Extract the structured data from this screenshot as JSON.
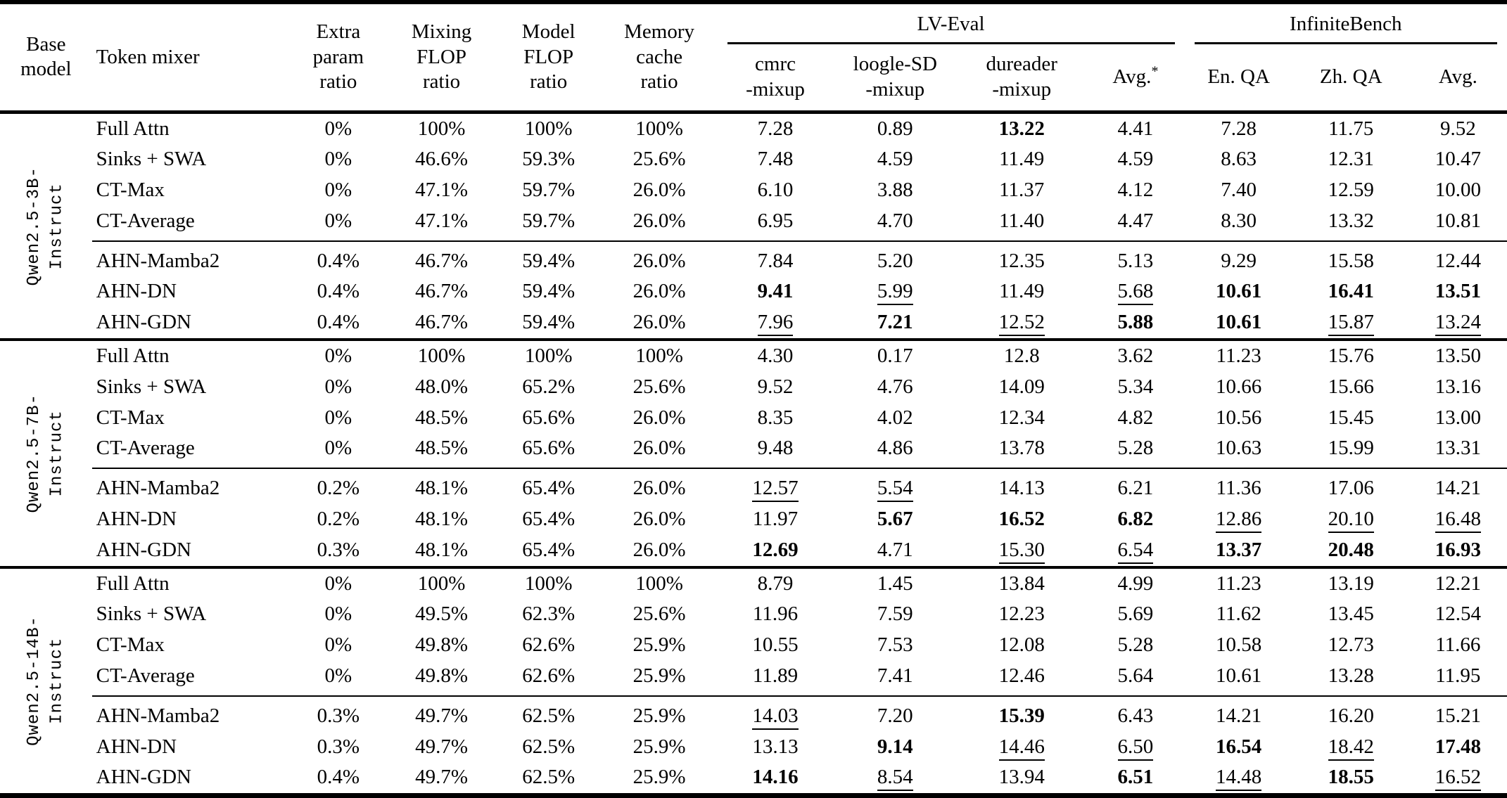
{
  "header": {
    "base_model": "Base\nmodel",
    "token_mixer": "Token mixer",
    "extra_param": "Extra\nparam\nratio",
    "mixing_flop": "Mixing\nFLOP\nratio",
    "model_flop": "Model\nFLOP\nratio",
    "memory_cache": "Memory\ncache\nratio",
    "lv_eval": "LV-Eval",
    "infinitebench": "InfiniteBench",
    "sub": [
      {
        "label": "cmrc\n-mixup"
      },
      {
        "label": "loogle-SD\n-mixup"
      },
      {
        "label": "dureader\n-mixup"
      },
      {
        "label": "Avg.",
        "sup": "*"
      },
      {
        "label": "En. QA"
      },
      {
        "label": "Zh. QA"
      },
      {
        "label": "Avg."
      }
    ]
  },
  "style_legend": {
    "b": "bold (best)",
    "u": "underline (second best)"
  },
  "groups": [
    {
      "base_model": "Qwen2.5-3B-\nInstruct",
      "rows": [
        {
          "mixer": "Full Attn",
          "cells": [
            "0%",
            "100%",
            "100%",
            "100%",
            "7.28",
            "0.89",
            "b:13.22",
            "4.41",
            "7.28",
            "11.75",
            "9.52"
          ]
        },
        {
          "mixer": "Sinks + SWA",
          "cells": [
            "0%",
            "46.6%",
            "59.3%",
            "25.6%",
            "7.48",
            "4.59",
            "11.49",
            "4.59",
            "8.63",
            "12.31",
            "10.47"
          ]
        },
        {
          "mixer": "CT-Max",
          "cells": [
            "0%",
            "47.1%",
            "59.7%",
            "26.0%",
            "6.10",
            "3.88",
            "11.37",
            "4.12",
            "7.40",
            "12.59",
            "10.00"
          ]
        },
        {
          "mixer": "CT-Average",
          "cells": [
            "0%",
            "47.1%",
            "59.7%",
            "26.0%",
            "6.95",
            "4.70",
            "11.40",
            "4.47",
            "8.30",
            "13.32",
            "10.81"
          ]
        },
        {
          "mixer": "AHN-Mamba2",
          "cells": [
            "0.4%",
            "46.7%",
            "59.4%",
            "26.0%",
            "7.84",
            "5.20",
            "12.35",
            "5.13",
            "9.29",
            "15.58",
            "12.44"
          ]
        },
        {
          "mixer": "AHN-DN",
          "cells": [
            "0.4%",
            "46.7%",
            "59.4%",
            "26.0%",
            "b:9.41",
            "u:5.99",
            "11.49",
            "u:5.68",
            "b:10.61",
            "b:16.41",
            "b:13.51"
          ]
        },
        {
          "mixer": "AHN-GDN",
          "cells": [
            "0.4%",
            "46.7%",
            "59.4%",
            "26.0%",
            "u:7.96",
            "b:7.21",
            "u:12.52",
            "b:5.88",
            "b:10.61",
            "u:15.87",
            "u:13.24"
          ]
        }
      ]
    },
    {
      "base_model": "Qwen2.5-7B-\nInstruct",
      "rows": [
        {
          "mixer": "Full Attn",
          "cells": [
            "0%",
            "100%",
            "100%",
            "100%",
            "4.30",
            "0.17",
            "12.8",
            "3.62",
            "11.23",
            "15.76",
            "13.50"
          ]
        },
        {
          "mixer": "Sinks + SWA",
          "cells": [
            "0%",
            "48.0%",
            "65.2%",
            "25.6%",
            "9.52",
            "4.76",
            "14.09",
            "5.34",
            "10.66",
            "15.66",
            "13.16"
          ]
        },
        {
          "mixer": "CT-Max",
          "cells": [
            "0%",
            "48.5%",
            "65.6%",
            "26.0%",
            "8.35",
            "4.02",
            "12.34",
            "4.82",
            "10.56",
            "15.45",
            "13.00"
          ]
        },
        {
          "mixer": "CT-Average",
          "cells": [
            "0%",
            "48.5%",
            "65.6%",
            "26.0%",
            "9.48",
            "4.86",
            "13.78",
            "5.28",
            "10.63",
            "15.99",
            "13.31"
          ]
        },
        {
          "mixer": "AHN-Mamba2",
          "cells": [
            "0.2%",
            "48.1%",
            "65.4%",
            "26.0%",
            "u:12.57",
            "u:5.54",
            "14.13",
            "6.21",
            "11.36",
            "17.06",
            "14.21"
          ]
        },
        {
          "mixer": "AHN-DN",
          "cells": [
            "0.2%",
            "48.1%",
            "65.4%",
            "26.0%",
            "11.97",
            "b:5.67",
            "b:16.52",
            "b:6.82",
            "u:12.86",
            "u:20.10",
            "u:16.48"
          ]
        },
        {
          "mixer": "AHN-GDN",
          "cells": [
            "0.3%",
            "48.1%",
            "65.4%",
            "26.0%",
            "b:12.69",
            "4.71",
            "u:15.30",
            "u:6.54",
            "b:13.37",
            "b:20.48",
            "b:16.93"
          ]
        }
      ]
    },
    {
      "base_model": "Qwen2.5-14B-\nInstruct",
      "rows": [
        {
          "mixer": "Full Attn",
          "cells": [
            "0%",
            "100%",
            "100%",
            "100%",
            "8.79",
            "1.45",
            "13.84",
            "4.99",
            "11.23",
            "13.19",
            "12.21"
          ]
        },
        {
          "mixer": "Sinks + SWA",
          "cells": [
            "0%",
            "49.5%",
            "62.3%",
            "25.6%",
            "11.96",
            "7.59",
            "12.23",
            "5.69",
            "11.62",
            "13.45",
            "12.54"
          ]
        },
        {
          "mixer": "CT-Max",
          "cells": [
            "0%",
            "49.8%",
            "62.6%",
            "25.9%",
            "10.55",
            "7.53",
            "12.08",
            "5.28",
            "10.58",
            "12.73",
            "11.66"
          ]
        },
        {
          "mixer": "CT-Average",
          "cells": [
            "0%",
            "49.8%",
            "62.6%",
            "25.9%",
            "11.89",
            "7.41",
            "12.46",
            "5.64",
            "10.61",
            "13.28",
            "11.95"
          ]
        },
        {
          "mixer": "AHN-Mamba2",
          "cells": [
            "0.3%",
            "49.7%",
            "62.5%",
            "25.9%",
            "u:14.03",
            "7.20",
            "b:15.39",
            "6.43",
            "14.21",
            "16.20",
            "15.21"
          ]
        },
        {
          "mixer": "AHN-DN",
          "cells": [
            "0.3%",
            "49.7%",
            "62.5%",
            "25.9%",
            "13.13",
            "b:9.14",
            "u:14.46",
            "u:6.50",
            "b:16.54",
            "u:18.42",
            "b:17.48"
          ]
        },
        {
          "mixer": "AHN-GDN",
          "cells": [
            "0.4%",
            "49.7%",
            "62.5%",
            "25.9%",
            "b:14.16",
            "u:8.54",
            "13.94",
            "b:6.51",
            "u:14.48",
            "b:18.55",
            "u:16.52"
          ]
        }
      ]
    }
  ]
}
